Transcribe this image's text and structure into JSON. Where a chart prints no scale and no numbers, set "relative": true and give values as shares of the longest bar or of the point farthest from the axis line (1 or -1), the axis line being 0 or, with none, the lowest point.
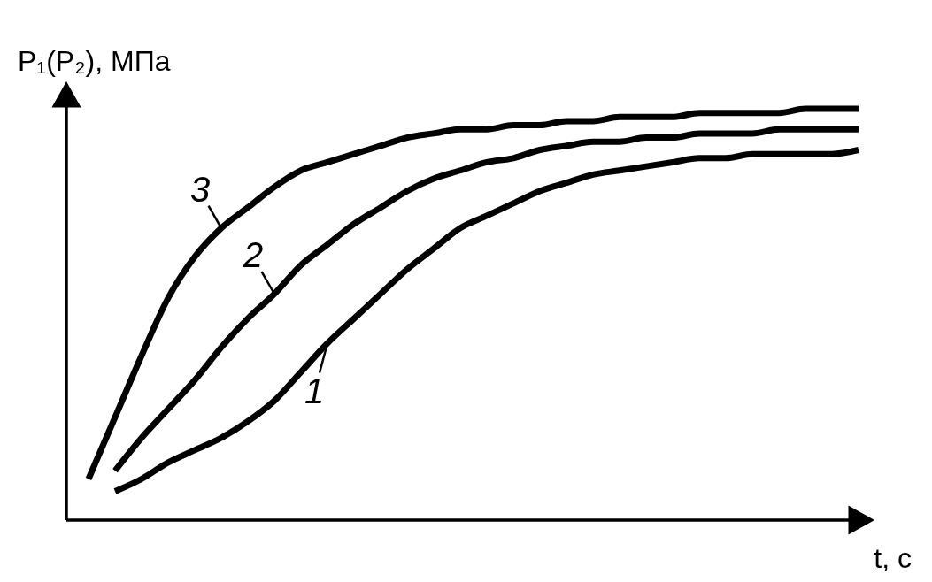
{
  "chart_data": {
    "type": "line",
    "relative": true,
    "legend": "left",
    "xlabel": "t, с",
    "ylabel": "P₁(P₂), МПа",
    "categories": [
      null,
      null,
      null,
      null,
      null,
      null,
      null,
      null,
      null,
      null,
      null,
      null,
      null,
      null,
      null,
      null,
      null,
      null,
      null,
      null,
      null,
      null,
      null,
      null,
      null,
      null,
      null,
      null,
      null,
      null
    ],
    "series": [
      {
        "name": "1",
        "color": "#000000",
        "values": [
          null,
          0.07,
          0.1,
          0.14,
          0.17,
          0.2,
          0.24,
          0.29,
          0.36,
          0.43,
          0.49,
          0.55,
          0.61,
          0.66,
          0.71,
          0.74,
          0.77,
          0.8,
          0.82,
          0.84,
          0.85,
          0.86,
          0.87,
          0.88,
          0.88,
          0.89,
          0.89,
          0.89,
          0.89,
          0.9
        ]
      },
      {
        "name": "2",
        "color": "#000000",
        "values": [
          null,
          0.12,
          0.2,
          0.27,
          0.34,
          0.42,
          0.49,
          0.55,
          0.62,
          0.67,
          0.72,
          0.76,
          0.8,
          0.83,
          0.85,
          0.87,
          0.88,
          0.9,
          0.91,
          0.92,
          0.92,
          0.93,
          0.93,
          0.94,
          0.94,
          0.94,
          0.95,
          0.95,
          0.95,
          0.95
        ]
      },
      {
        "name": "3",
        "color": "#000000",
        "values": [
          0.1,
          0.25,
          0.4,
          0.54,
          0.64,
          0.71,
          0.76,
          0.81,
          0.85,
          0.87,
          0.89,
          0.91,
          0.93,
          0.94,
          0.95,
          0.95,
          0.96,
          0.96,
          0.97,
          0.97,
          0.98,
          0.98,
          0.98,
          0.99,
          0.99,
          0.99,
          0.99,
          1.0,
          1.0,
          1.0
        ]
      }
    ]
  }
}
